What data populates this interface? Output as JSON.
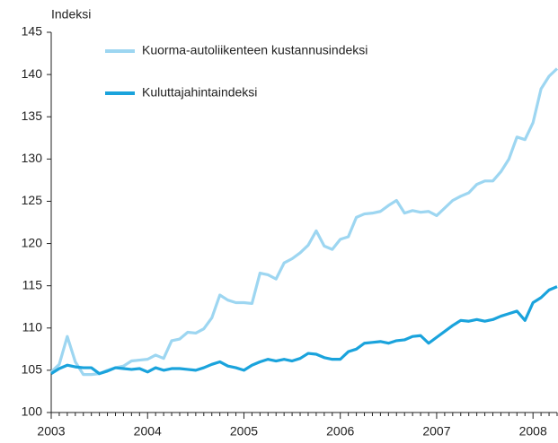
{
  "chart_data": {
    "type": "line",
    "y_label": "Indeksi",
    "categories": [
      "2003",
      null,
      null,
      null,
      null,
      null,
      null,
      null,
      null,
      null,
      null,
      null,
      "2004",
      null,
      null,
      null,
      null,
      null,
      null,
      null,
      null,
      null,
      null,
      null,
      "2005",
      null,
      null,
      null,
      null,
      null,
      null,
      null,
      null,
      null,
      null,
      null,
      "2006",
      null,
      null,
      null,
      null,
      null,
      null,
      null,
      null,
      null,
      null,
      null,
      "2007",
      null,
      null,
      null,
      null,
      null,
      null,
      null,
      null,
      null,
      null,
      null,
      "2008",
      null,
      null,
      null
    ],
    "series": [
      {
        "name": "Kuorma-autoliikenteen kustannusindeksi",
        "color": "#9dd6f1",
        "values": [
          104.8,
          105.7,
          109.0,
          106.0,
          104.5,
          104.5,
          104.6,
          105.0,
          105.3,
          105.5,
          106.1,
          106.2,
          106.3,
          106.8,
          106.4,
          108.5,
          108.7,
          109.5,
          109.4,
          109.9,
          111.2,
          113.9,
          113.3,
          113.0,
          113.0,
          112.9,
          116.5,
          116.3,
          115.8,
          117.7,
          118.2,
          118.9,
          119.8,
          121.5,
          119.7,
          119.3,
          120.5,
          120.8,
          123.1,
          123.5,
          123.6,
          123.8,
          124.5,
          125.1,
          123.6,
          123.9,
          123.7,
          123.8,
          123.3,
          124.2,
          125.1,
          125.6,
          126.0,
          127.0,
          127.4,
          127.4,
          128.5,
          130.0,
          132.6,
          132.3,
          134.3,
          138.3,
          139.8,
          140.7
        ]
      },
      {
        "name": "Kuluttajahintaindeksi",
        "color": "#1aa3dc",
        "values": [
          104.6,
          105.2,
          105.6,
          105.4,
          105.3,
          105.3,
          104.6,
          104.9,
          105.3,
          105.2,
          105.1,
          105.2,
          104.8,
          105.3,
          105.0,
          105.2,
          105.2,
          105.1,
          105.0,
          105.3,
          105.7,
          106.0,
          105.5,
          105.3,
          105.0,
          105.6,
          106.0,
          106.3,
          106.1,
          106.3,
          106.1,
          106.4,
          107.0,
          106.9,
          106.5,
          106.3,
          106.3,
          107.2,
          107.5,
          108.2,
          108.3,
          108.4,
          108.2,
          108.5,
          108.6,
          109.0,
          109.1,
          108.2,
          108.9,
          109.6,
          110.3,
          110.9,
          110.8,
          111.0,
          110.8,
          111.0,
          111.4,
          111.7,
          112.0,
          110.9,
          113.0,
          113.6,
          114.5,
          114.9
        ]
      }
    ],
    "ylim": [
      100,
      145
    ],
    "yticks": [
      100,
      105,
      110,
      115,
      120,
      125,
      130,
      135,
      140,
      145
    ]
  }
}
